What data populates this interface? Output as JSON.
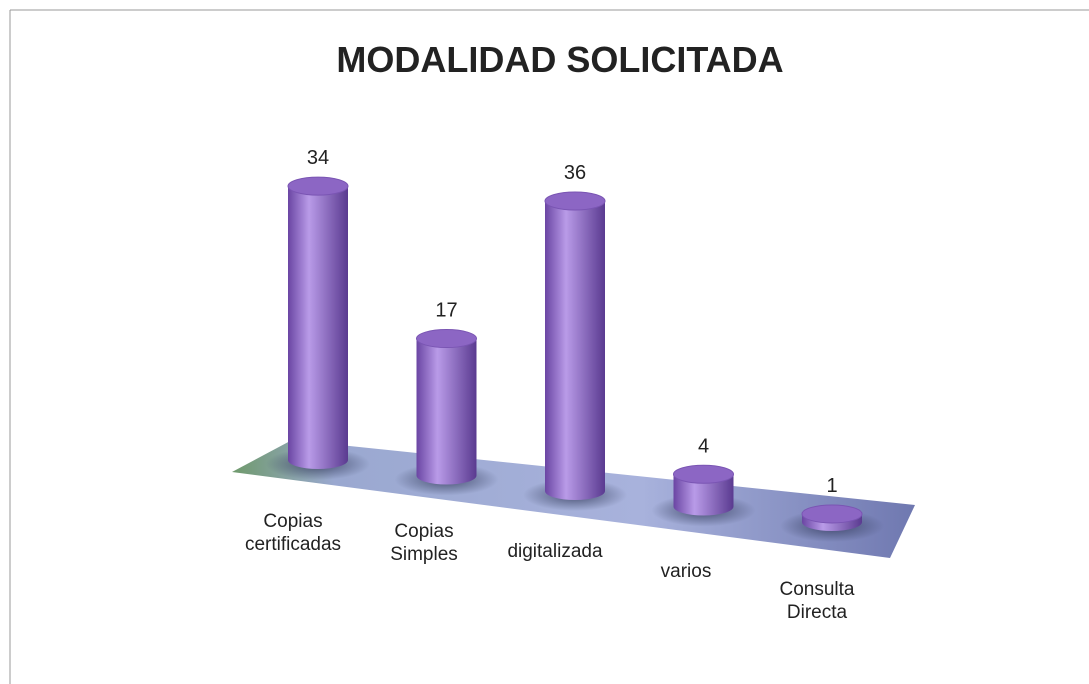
{
  "chart_data": {
    "type": "cylinder",
    "title": "MODALIDAD SOLICITADA",
    "categories": [
      "Copias certificadas",
      "Copias Simples",
      "digitalizada",
      "varios",
      "Consulta Directa"
    ],
    "values": [
      34,
      17,
      36,
      4,
      1
    ],
    "color": "#8c66c4"
  }
}
